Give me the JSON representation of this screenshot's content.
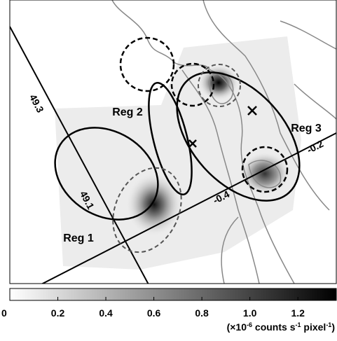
{
  "image": {
    "coordinate_labels": [
      "49.3",
      "49.1",
      "-0.4",
      "-0.2"
    ],
    "region_labels": [
      "Reg 2",
      "Reg 3",
      "Reg 1"
    ]
  },
  "colorbar": {
    "lim": [
      0,
      1.36
    ],
    "ticks": [
      0,
      0.2,
      0.4,
      0.6,
      0.8,
      {
        "value": 1,
        "label": "1.0"
      },
      1.2
    ],
    "unit": [
      {
        "text": "(×10"
      },
      {
        "text": "-6",
        "sup": true
      },
      {
        "text": " counts s"
      },
      {
        "text": "-1",
        "sup": true
      },
      {
        "text": " pixel"
      },
      {
        "text": "-1",
        "sup": true
      },
      {
        "text": ")"
      }
    ]
  }
}
